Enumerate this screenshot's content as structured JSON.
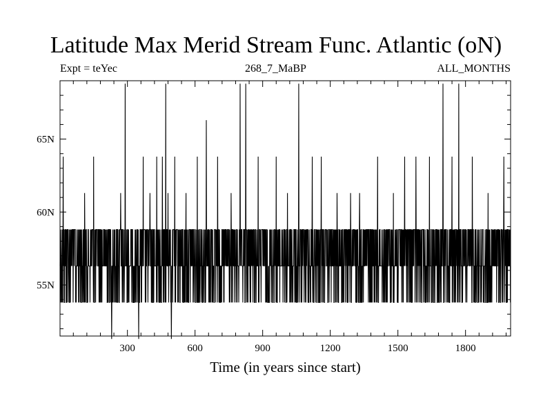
{
  "chart_data": {
    "type": "line",
    "title": "Latitude Max Merid Stream Func. Atlantic (oN)",
    "subtitle_left": "Expt = teYec",
    "subtitle_center": "268_7_MaBP",
    "subtitle_right": "ALL_MONTHS",
    "xlabel": "Time (in years since start)",
    "ylabel": "",
    "xlim": [
      1,
      2000
    ],
    "ylim": [
      51.5,
      69
    ],
    "x_ticks": [
      300,
      600,
      900,
      1200,
      1500,
      1800
    ],
    "y_ticks": [
      55,
      60,
      65
    ],
    "y_tick_labels": [
      "55N",
      "60N",
      "65N"
    ],
    "levels": [
      51.3,
      53.8,
      56.3,
      58.8,
      61.3,
      63.8,
      66.3,
      68.8
    ],
    "series": [
      {
        "x_start": 1,
        "x_step": 1,
        "baseline": 56.3,
        "note_values": "annual values switch between discrete levels 53.8, 56.3 and 58.8 N with occasional spikes",
        "spikes": [
          {
            "x": 15,
            "y": 63.8
          },
          {
            "x": 110,
            "y": 61.3
          },
          {
            "x": 150,
            "y": 63.8
          },
          {
            "x": 230,
            "y": 51.3
          },
          {
            "x": 270,
            "y": 61.3
          },
          {
            "x": 290,
            "y": 68.8
          },
          {
            "x": 350,
            "y": 51.3
          },
          {
            "x": 370,
            "y": 63.8
          },
          {
            "x": 400,
            "y": 61.3
          },
          {
            "x": 430,
            "y": 63.8
          },
          {
            "x": 455,
            "y": 63.8
          },
          {
            "x": 470,
            "y": 68.8
          },
          {
            "x": 480,
            "y": 61.3
          },
          {
            "x": 495,
            "y": 51.3
          },
          {
            "x": 510,
            "y": 63.8
          },
          {
            "x": 560,
            "y": 61.3
          },
          {
            "x": 610,
            "y": 63.8
          },
          {
            "x": 650,
            "y": 66.3
          },
          {
            "x": 700,
            "y": 63.8
          },
          {
            "x": 760,
            "y": 61.3
          },
          {
            "x": 800,
            "y": 68.8
          },
          {
            "x": 825,
            "y": 68.8
          },
          {
            "x": 880,
            "y": 63.8
          },
          {
            "x": 960,
            "y": 63.8
          },
          {
            "x": 1010,
            "y": 61.3
          },
          {
            "x": 1060,
            "y": 68.8
          },
          {
            "x": 1120,
            "y": 63.8
          },
          {
            "x": 1160,
            "y": 63.8
          },
          {
            "x": 1230,
            "y": 61.3
          },
          {
            "x": 1290,
            "y": 61.3
          },
          {
            "x": 1330,
            "y": 61.3
          },
          {
            "x": 1410,
            "y": 63.8
          },
          {
            "x": 1480,
            "y": 61.3
          },
          {
            "x": 1530,
            "y": 63.8
          },
          {
            "x": 1580,
            "y": 63.8
          },
          {
            "x": 1640,
            "y": 63.8
          },
          {
            "x": 1700,
            "y": 68.8
          },
          {
            "x": 1740,
            "y": 63.8
          },
          {
            "x": 1770,
            "y": 68.8
          },
          {
            "x": 1830,
            "y": 63.8
          },
          {
            "x": 1900,
            "y": 61.3
          },
          {
            "x": 1970,
            "y": 63.8
          }
        ]
      }
    ],
    "grid": false,
    "legend": "none"
  }
}
